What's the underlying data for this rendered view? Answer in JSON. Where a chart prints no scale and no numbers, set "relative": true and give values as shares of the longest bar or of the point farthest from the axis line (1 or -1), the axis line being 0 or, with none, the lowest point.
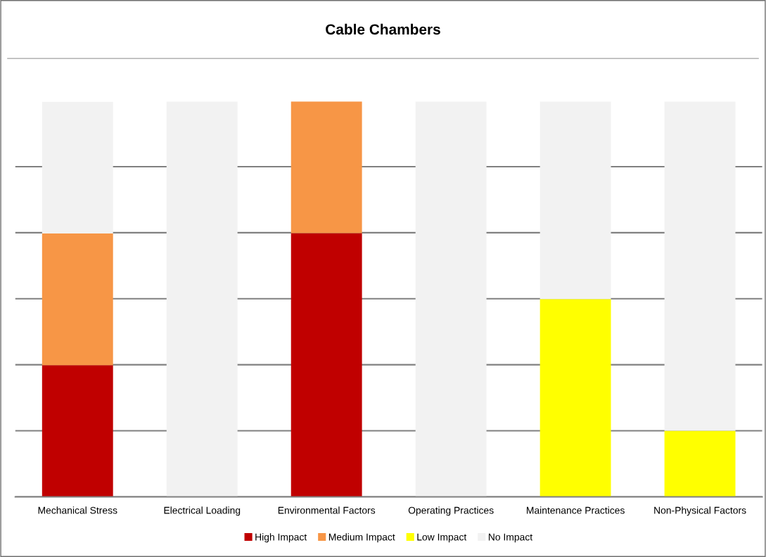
{
  "chart_data": {
    "type": "bar",
    "title": "Cable Chambers",
    "stacked": true,
    "relative": true,
    "grid": "y",
    "legend": "bottom",
    "categories": [
      "Mechanical Stress",
      "Electrical Loading",
      "Environmental Factors",
      "Operating Practices",
      "Maintenance Practices",
      "Non-Physical Factors"
    ],
    "series": [
      {
        "name": "High Impact",
        "color": "#c00000",
        "values": [
          0.333,
          0,
          0.667,
          0,
          0,
          0
        ]
      },
      {
        "name": "Medium Impact",
        "color": "#f79646",
        "values": [
          0.333,
          0,
          0.333,
          0,
          0,
          0
        ]
      },
      {
        "name": "Low Impact",
        "color": "#ffff00",
        "values": [
          0,
          0,
          0,
          0,
          0.5,
          0.167
        ]
      },
      {
        "name": "No Impact",
        "color": "#f2f2f2",
        "values": [
          0.333,
          1,
          0,
          1,
          0.5,
          0.833
        ]
      }
    ]
  }
}
